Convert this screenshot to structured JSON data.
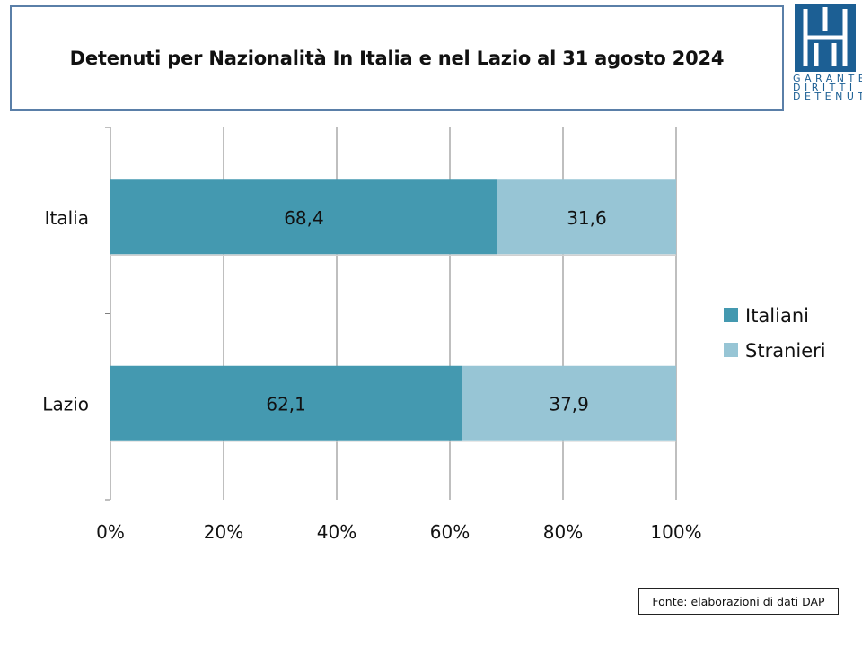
{
  "header": {
    "title": "Detenuti per Nazionalità In Italia e nel Lazio al 31 agosto 2024"
  },
  "logo": {
    "lines": [
      "GARANTE",
      "DIRITTI",
      "DETENUTI"
    ],
    "color": "#1c5f94"
  },
  "chart_data": {
    "type": "bar",
    "orientation": "horizontal",
    "stacked": true,
    "categories": [
      "Italia",
      "Lazio"
    ],
    "series": [
      {
        "name": "Italiani",
        "values": [
          68.4,
          62.1
        ],
        "labels": [
          "68,4",
          "62,1"
        ],
        "color": "#4499b0"
      },
      {
        "name": "Stranieri",
        "values": [
          31.6,
          37.9
        ],
        "labels": [
          "31,6",
          "37,9"
        ],
        "color": "#97c5d5"
      }
    ],
    "xlim": [
      0,
      100
    ],
    "xticks": [
      "0%",
      "20%",
      "40%",
      "60%",
      "80%",
      "100%"
    ],
    "grid": true,
    "legend": "right"
  },
  "footer": {
    "source": "Fonte: elaborazioni di dati DAP"
  }
}
